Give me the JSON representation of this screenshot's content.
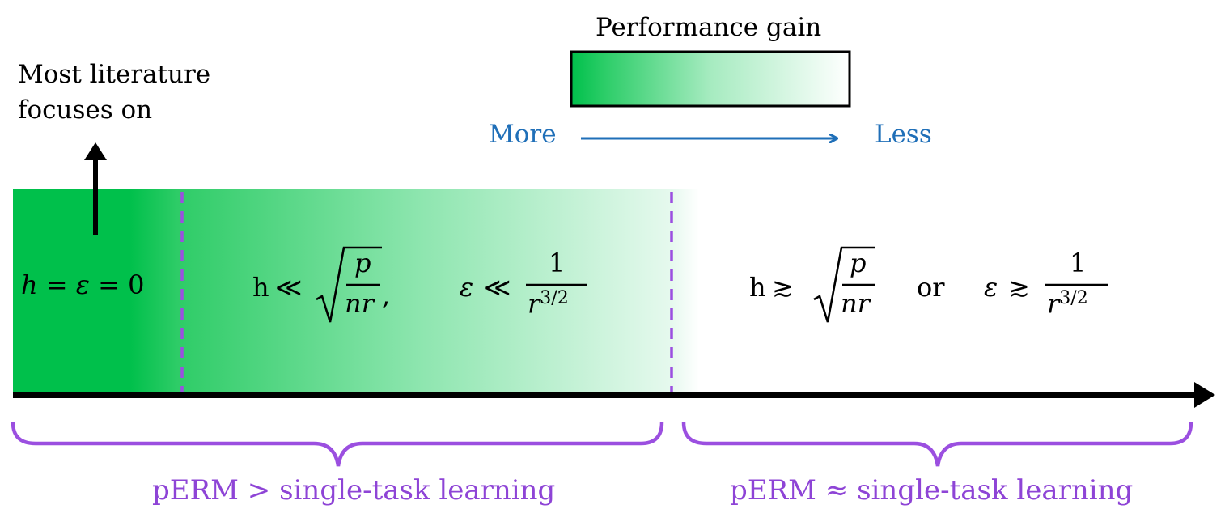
{
  "legend": {
    "title": "Performance gain",
    "more_label": "More",
    "less_label": "Less",
    "color_strong": "#00c04b",
    "color_weak": "#ffffff"
  },
  "note": {
    "line1": "Most literature",
    "line2": "focuses on"
  },
  "regions": {
    "zero": {
      "h": "h",
      "eq1": "=",
      "eps": "ε",
      "eq2": "=",
      "zero": "0"
    },
    "small": {
      "h": "h",
      "ll": "≪",
      "p": "p",
      "nr": "nr",
      "comma": ",",
      "eps": "ε",
      "one": "1",
      "r": "r",
      "exp": "3/2"
    },
    "large": {
      "h": "h",
      "gtrsim": "≳",
      "p": "p",
      "nr": "nr",
      "or": "or",
      "eps": "ε",
      "one": "1",
      "r": "r",
      "exp": "3/2"
    }
  },
  "braces": {
    "left_label": "pERM > single-task learning",
    "right_label": "pERM ≈ single-task learning"
  },
  "colors": {
    "purple": "#8e44d6",
    "blue": "#1f6fb8",
    "green": "#00c04b"
  }
}
